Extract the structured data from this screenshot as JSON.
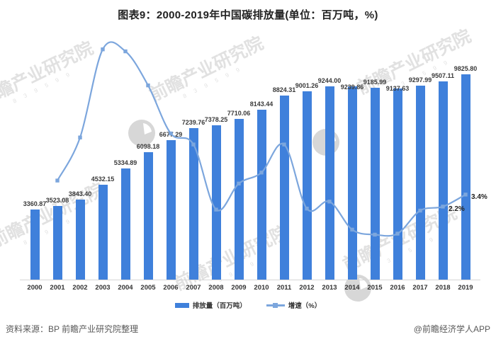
{
  "title": "图表9：2000-2019年中国碳排放量(单位：百万吨，%)",
  "chart_data": {
    "type": "bar",
    "subtype": "bar-line-combo",
    "categories": [
      "2000",
      "2001",
      "2002",
      "2003",
      "2004",
      "2005",
      "2006",
      "2007",
      "2008",
      "2009",
      "2010",
      "2011",
      "2012",
      "2013",
      "2014",
      "2015",
      "2016",
      "2017",
      "2018",
      "2019"
    ],
    "series": [
      {
        "name": "排放量（百万吨）",
        "type": "bar",
        "color": "#3F80DB",
        "values": [
          3360.87,
          3523.08,
          3843.4,
          4532.15,
          5334.89,
          6098.18,
          6677.29,
          7239.76,
          7378.25,
          7710.06,
          8143.44,
          8824.31,
          9001.26,
          9244.0,
          9239.86,
          9185.99,
          9137.63,
          9297.99,
          9507.11,
          9825.8
        ],
        "labels": [
          "3360.87",
          "3523.08",
          "3843.40",
          "4532.15",
          "5334.89",
          "6098.18",
          "6677.29",
          "7239.76",
          "7378.25",
          "7710.06",
          "8143.44",
          "8824.31",
          "9001.26",
          "9244.00",
          "9239.86",
          "9185.99",
          "9137.63",
          "9297.99",
          "9507.11",
          "9825.80"
        ]
      },
      {
        "name": "增速（%）",
        "type": "line",
        "color": "#7CA6DD",
        "marker": "square",
        "start_category": "2001",
        "values": [
          4.8,
          9.1,
          17.9,
          17.7,
          14.3,
          9.5,
          8.4,
          1.9,
          4.5,
          5.6,
          8.4,
          2.0,
          2.7,
          -0.1,
          -0.6,
          -0.5,
          1.8,
          2.2,
          3.4
        ],
        "point_labels": {
          "2018": "2.2%",
          "2019": "3.4%"
        }
      }
    ],
    "title": "图表9：2000-2019年中国碳排放量(单位：百万吨，%)",
    "xlabel": "",
    "ylabel": "",
    "y_axis_visible": false,
    "grid": false,
    "legend_position": "bottom",
    "bar_ylim": [
      0,
      10500
    ],
    "line_ylim_pct": [
      -5,
      23
    ]
  },
  "colors": {
    "bar": "#3F80DB",
    "line": "#7CA6DD",
    "axis_line": "#D6D6D6",
    "text_dark": "#333333",
    "watermark": "#ABABAB"
  },
  "legend": [
    {
      "label": "排放量（百万吨）",
      "swatch": "bar"
    },
    {
      "label": "增速（%）",
      "swatch": "line-with-square-marker"
    }
  ],
  "footer": {
    "source": "资料来源：BP 前瞻产业研究院整理",
    "credit": "@前瞻经济学人APP"
  },
  "watermark": {
    "text": "前瞻产业研究院",
    "subtext": "8 3 9 5 9 9",
    "logo": "qianzhan-circle-logo"
  }
}
